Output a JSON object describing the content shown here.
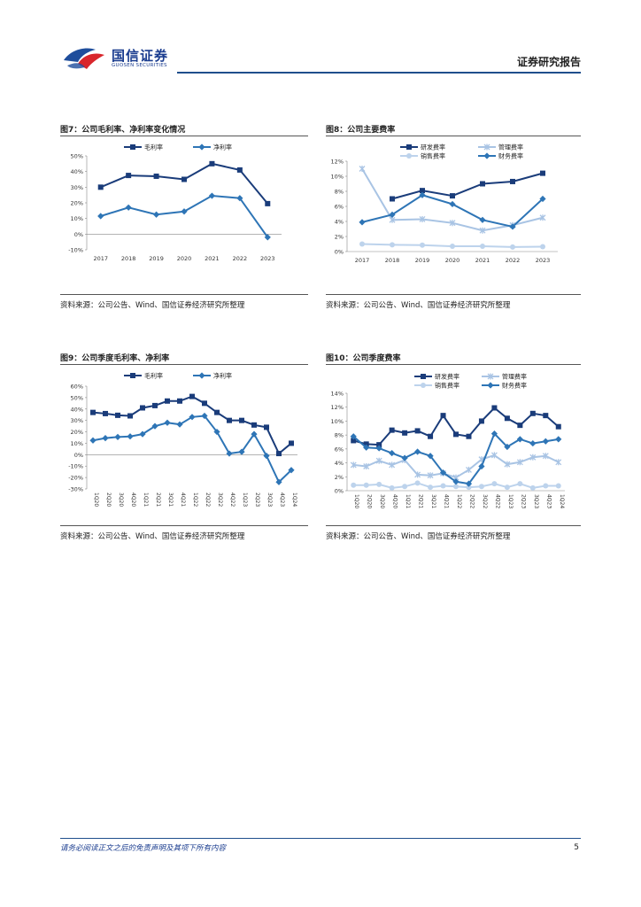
{
  "header": {
    "logo_cn": "国信证券",
    "logo_en": "GUOSEN SECURITIES",
    "report_title": "证券研究报告"
  },
  "figures": [
    {
      "title": "图7：公司毛利率、净利率变化情况",
      "source": "资料来源：公司公告、Wind、国信证券经济研究所整理"
    },
    {
      "title": "图8：公司主要费率",
      "source": "资料来源：公司公告、Wind、国信证券经济研究所整理"
    },
    {
      "title": "图9：公司季度毛利率、净利率",
      "source": "资料来源：公司公告、Wind、国信证券经济研究所整理"
    },
    {
      "title": "图10：公司季度费率",
      "source": "资料来源：公司公告、Wind、国信证券经济研究所整理"
    }
  ],
  "chart_data": [
    {
      "type": "line",
      "title": "图7：公司毛利率、净利率变化情况",
      "categories": [
        "2017",
        "2018",
        "2019",
        "2020",
        "2021",
        "2022",
        "2023"
      ],
      "series": [
        {
          "name": "毛利率",
          "color": "#1a3c7a",
          "marker": "square",
          "values": [
            30,
            37.5,
            37,
            35,
            45,
            41,
            19.5
          ]
        },
        {
          "name": "净利率",
          "color": "#2e75b6",
          "marker": "diamond",
          "values": [
            11.5,
            17,
            12.5,
            14.5,
            24.5,
            23,
            -2
          ]
        }
      ],
      "ylim": [
        -10,
        50
      ],
      "yticks": [
        -10,
        0,
        10,
        20,
        30,
        40,
        50
      ],
      "ytick_labels": [
        "-10%",
        "0%",
        "10%",
        "20%",
        "30%",
        "40%",
        "50%"
      ],
      "xlabel_rotated": false,
      "legend": "top"
    },
    {
      "type": "line",
      "title": "图8：公司主要费率",
      "categories": [
        "2017",
        "2018",
        "2019",
        "2020",
        "2021",
        "2022",
        "2023"
      ],
      "series": [
        {
          "name": "研发费率",
          "color": "#1a3c7a",
          "marker": "square",
          "values": [
            null,
            7,
            8.1,
            7.4,
            9,
            9.3,
            10.4
          ]
        },
        {
          "name": "管理费率",
          "color": "#a9c4e4",
          "marker": "x",
          "values": [
            11,
            4.2,
            4.3,
            3.8,
            2.8,
            3.5,
            4.5
          ]
        },
        {
          "name": "销售费率",
          "color": "#bdd3ec",
          "marker": "circle",
          "values": [
            1,
            0.9,
            0.85,
            0.7,
            0.7,
            0.6,
            0.65
          ]
        },
        {
          "name": "财务费率",
          "color": "#2e75b6",
          "marker": "diamond",
          "values": [
            3.9,
            4.9,
            7.5,
            6.3,
            4.2,
            3.3,
            7
          ]
        }
      ],
      "ylim": [
        0,
        12
      ],
      "yticks": [
        0,
        2,
        4,
        6,
        8,
        10,
        12
      ],
      "ytick_labels": [
        "0%",
        "2%",
        "4%",
        "6%",
        "8%",
        "10%",
        "12%"
      ],
      "xlabel_rotated": false,
      "legend": "top"
    },
    {
      "type": "line",
      "title": "图9：公司季度毛利率、净利率",
      "categories": [
        "1Q20",
        "2Q20",
        "3Q20",
        "4Q20",
        "1Q21",
        "2Q21",
        "3Q21",
        "4Q21",
        "1Q22",
        "2Q22",
        "3Q22",
        "4Q22",
        "1Q23",
        "2Q23",
        "3Q23",
        "4Q23",
        "1Q24"
      ],
      "series": [
        {
          "name": "毛利率",
          "color": "#1a3c7a",
          "marker": "square",
          "values": [
            37,
            36,
            34.5,
            34,
            41,
            43,
            47,
            47,
            51,
            45,
            37,
            30,
            30,
            26,
            24,
            1,
            10
          ]
        },
        {
          "name": "净利率",
          "color": "#2e75b6",
          "marker": "diamond",
          "values": [
            12.5,
            14.5,
            15.5,
            16,
            18,
            25,
            28,
            26.5,
            33,
            34,
            20,
            1,
            2.5,
            18,
            -1,
            -24,
            -13.5
          ]
        }
      ],
      "ylim": [
        -30,
        60
      ],
      "yticks": [
        -30,
        -20,
        -10,
        0,
        10,
        20,
        30,
        40,
        50,
        60
      ],
      "ytick_labels": [
        "-30%",
        "-20%",
        "-10%",
        "0%",
        "10%",
        "20%",
        "30%",
        "40%",
        "50%",
        "60%"
      ],
      "xlabel_rotated": true,
      "legend": "top"
    },
    {
      "type": "line",
      "title": "图10：公司季度费率",
      "categories": [
        "1Q20",
        "2Q20",
        "3Q20",
        "4Q20",
        "1Q21",
        "2Q21",
        "3Q21",
        "4Q21",
        "1Q22",
        "2Q22",
        "3Q22",
        "4Q22",
        "1Q23",
        "2Q23",
        "3Q23",
        "4Q23",
        "1Q24"
      ],
      "series": [
        {
          "name": "研发费率",
          "color": "#1a3c7a",
          "marker": "square",
          "values": [
            7.2,
            6.7,
            6.6,
            8.7,
            8.3,
            8.6,
            7.8,
            10.8,
            8.1,
            7.8,
            10,
            11.9,
            10.4,
            9.4,
            11.1,
            10.8,
            9.2
          ]
        },
        {
          "name": "管理费率",
          "color": "#a9c4e4",
          "marker": "x",
          "values": [
            3.7,
            3.5,
            4.3,
            3.7,
            4.4,
            2.3,
            2.2,
            2.5,
            1.9,
            3,
            4.5,
            5.1,
            3.8,
            4.1,
            4.8,
            5,
            4.1
          ]
        },
        {
          "name": "销售费率",
          "color": "#bdd3ec",
          "marker": "circle",
          "values": [
            0.8,
            0.8,
            0.9,
            0.4,
            0.6,
            1.1,
            0.5,
            0.7,
            0.6,
            0.5,
            0.6,
            1,
            0.5,
            1,
            0.4,
            0.7,
            0.7
          ]
        },
        {
          "name": "财务费率",
          "color": "#2e75b6",
          "marker": "diamond",
          "values": [
            7.8,
            6.2,
            6.1,
            5.4,
            4.7,
            5.6,
            5,
            2.6,
            1.3,
            1,
            3.5,
            8.2,
            6.3,
            7.4,
            6.8,
            7.1,
            7.4
          ]
        }
      ],
      "ylim": [
        0,
        14
      ],
      "yticks": [
        0,
        2,
        4,
        6,
        8,
        10,
        12,
        14
      ],
      "ytick_labels": [
        "0%",
        "2%",
        "4%",
        "6%",
        "8%",
        "10%",
        "12%",
        "14%"
      ],
      "xlabel_rotated": true,
      "legend": "top"
    }
  ],
  "footer": {
    "disclaimer": "请务必阅读正文之后的免责声明及其项下所有内容",
    "page_number": "5"
  }
}
